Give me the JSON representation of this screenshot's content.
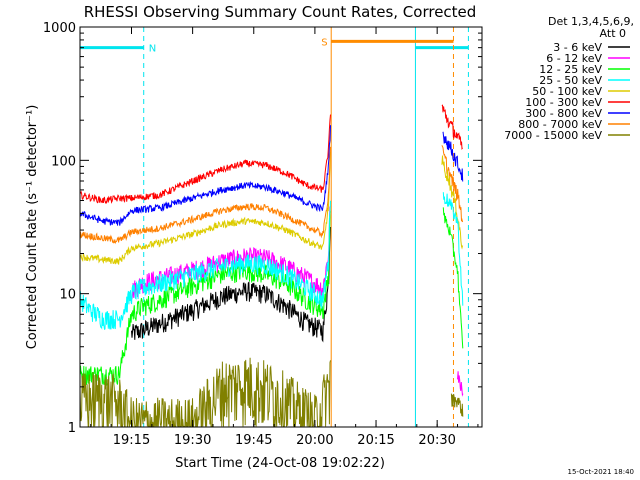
{
  "chart_data": {
    "type": "line",
    "title": "RHESSI Observing Summary Count Rates, Corrected",
    "xlabel": "Start Time (24-Oct-08 19:02:22)",
    "ylabel": "Corrected Count Rate (s⁻¹ detector⁻¹)",
    "yscale": "log",
    "ylim": [
      1,
      1000
    ],
    "xlim": [
      "19:02:22",
      "20:41:00"
    ],
    "x_ticks": [
      "19:15",
      "19:30",
      "19:45",
      "20:00",
      "20:15",
      "20:30"
    ],
    "y_ticks": [
      "1",
      "10",
      "100",
      "1000"
    ],
    "grid": false,
    "legend": {
      "position": "top-right",
      "header": [
        "Det 1,3,4,5,6,9,",
        "Att 0"
      ]
    },
    "footer": "15-Oct-2021 18:40",
    "flags": [
      {
        "label": "N",
        "kind": "night",
        "color": "#00e5ee",
        "start": "19:02:22",
        "end": "19:18:00",
        "level": 700
      },
      {
        "label": "",
        "kind": "night",
        "color": "#00e5ee",
        "start": "20:24:40",
        "end": "20:37:40",
        "level": 700
      },
      {
        "label": "S",
        "kind": "saa",
        "color": "#ff8c00",
        "start": "20:04:00",
        "end": "20:34:00",
        "level": 780
      }
    ],
    "series": [
      {
        "name": "3 - 6 keV",
        "color": "#000000",
        "points": [
          [
            "19:15:00",
            5
          ],
          [
            "19:17:30",
            5.3
          ],
          [
            "19:22:00",
            6
          ],
          [
            "19:30:00",
            7.5
          ],
          [
            "19:37:00",
            9.5
          ],
          [
            "19:43:00",
            10.5
          ],
          [
            "19:48:00",
            10
          ],
          [
            "19:53:00",
            8
          ],
          [
            "19:58:00",
            6
          ],
          [
            "20:02:00",
            5.3
          ],
          [
            "20:03:20",
            12
          ],
          [
            "20:03:50",
            40
          ]
        ]
      },
      {
        "name": "6 - 12 keV",
        "color": "#ff00ff",
        "points": [
          [
            "19:15:00",
            10.5
          ],
          [
            "19:17:30",
            12
          ],
          [
            "19:22:00",
            13
          ],
          [
            "19:30:00",
            15
          ],
          [
            "19:37:00",
            17.5
          ],
          [
            "19:43:00",
            19
          ],
          [
            "19:48:00",
            18.5
          ],
          [
            "19:53:00",
            16
          ],
          [
            "19:58:00",
            13
          ],
          [
            "20:02:00",
            11
          ],
          [
            "20:03:20",
            20
          ],
          [
            "20:03:50",
            55
          ]
        ]
      },
      {
        "name": "12 - 25 keV",
        "color": "#00ff00",
        "points": [
          [
            "19:02:22",
            2.5
          ],
          [
            "19:08:00",
            2.5
          ],
          [
            "19:12:00",
            2.5
          ],
          [
            "19:15:00",
            7
          ],
          [
            "19:17:30",
            8
          ],
          [
            "19:22:00",
            9
          ],
          [
            "19:30:00",
            11.5
          ],
          [
            "19:37:00",
            14
          ],
          [
            "19:43:00",
            15
          ],
          [
            "19:48:00",
            14
          ],
          [
            "19:53:00",
            12
          ],
          [
            "19:58:00",
            9
          ],
          [
            "20:02:00",
            7.5
          ],
          [
            "20:03:20",
            14
          ],
          [
            "20:03:50",
            50
          ]
        ]
      },
      {
        "name": "25 - 50 keV",
        "color": "#00ffff",
        "points": [
          [
            "19:02:22",
            9
          ],
          [
            "19:05:00",
            7.5
          ],
          [
            "19:08:00",
            6.5
          ],
          [
            "19:12:00",
            6.5
          ],
          [
            "19:15:00",
            10
          ],
          [
            "19:17:30",
            11
          ],
          [
            "19:22:00",
            12
          ],
          [
            "19:30:00",
            14
          ],
          [
            "19:37:00",
            16
          ],
          [
            "19:43:00",
            17
          ],
          [
            "19:48:00",
            16.5
          ],
          [
            "19:53:00",
            14
          ],
          [
            "19:58:00",
            11
          ],
          [
            "20:02:00",
            9
          ],
          [
            "20:03:20",
            18
          ],
          [
            "20:03:50",
            60
          ]
        ]
      },
      {
        "name": "50 - 100 keV",
        "color": "#ddcc00",
        "points": [
          [
            "19:02:22",
            19
          ],
          [
            "19:08:00",
            18
          ],
          [
            "19:12:00",
            17.5
          ],
          [
            "19:15:00",
            22
          ],
          [
            "19:22:00",
            24
          ],
          [
            "19:30:00",
            28
          ],
          [
            "19:37:00",
            33
          ],
          [
            "19:43:00",
            35
          ],
          [
            "19:48:00",
            34
          ],
          [
            "19:53:00",
            30
          ],
          [
            "19:58:00",
            25
          ],
          [
            "20:02:00",
            22
          ],
          [
            "20:03:20",
            45
          ],
          [
            "20:03:50",
            110
          ]
        ]
      },
      {
        "name": "100 - 300 keV",
        "color": "#ff0000",
        "points": [
          [
            "19:02:22",
            55
          ],
          [
            "19:08:00",
            50
          ],
          [
            "19:12:00",
            52
          ],
          [
            "19:15:00",
            52
          ],
          [
            "19:22:00",
            55
          ],
          [
            "19:30:00",
            70
          ],
          [
            "19:37:00",
            85
          ],
          [
            "19:43:00",
            95
          ],
          [
            "19:48:00",
            92
          ],
          [
            "19:53:00",
            80
          ],
          [
            "19:58:00",
            65
          ],
          [
            "20:02:00",
            60
          ],
          [
            "20:03:20",
            120
          ],
          [
            "20:03:50",
            230
          ]
        ]
      },
      {
        "name": "300 - 800 keV",
        "color": "#0000ff",
        "points": [
          [
            "19:02:22",
            40
          ],
          [
            "19:08:00",
            35
          ],
          [
            "19:12:00",
            34
          ],
          [
            "19:15:00",
            42
          ],
          [
            "19:22:00",
            44
          ],
          [
            "19:30:00",
            52
          ],
          [
            "19:37:00",
            60
          ],
          [
            "19:43:00",
            65
          ],
          [
            "19:48:00",
            63
          ],
          [
            "19:53:00",
            56
          ],
          [
            "19:58:00",
            48
          ],
          [
            "20:02:00",
            43
          ],
          [
            "20:03:20",
            90
          ],
          [
            "20:03:50",
            180
          ]
        ]
      },
      {
        "name": "800 - 7000 keV",
        "color": "#ff8000",
        "points": [
          [
            "19:02:22",
            28
          ],
          [
            "19:08:00",
            26
          ],
          [
            "19:12:00",
            25
          ],
          [
            "19:15:00",
            29
          ],
          [
            "19:22:00",
            31
          ],
          [
            "19:30:00",
            36
          ],
          [
            "19:37:00",
            42
          ],
          [
            "19:43:00",
            45
          ],
          [
            "19:48:00",
            44
          ],
          [
            "19:53:00",
            38
          ],
          [
            "19:58:00",
            32
          ],
          [
            "20:02:00",
            28
          ],
          [
            "20:03:20",
            55
          ],
          [
            "20:03:50",
            130
          ]
        ]
      },
      {
        "name": "7000 - 15000 keV",
        "color": "#808000",
        "points": [
          [
            "19:02:22",
            1.6
          ],
          [
            "19:08:00",
            1.7
          ],
          [
            "19:12:00",
            1.5
          ],
          [
            "19:15:00",
            1.05
          ],
          [
            "19:30:00",
            1.05
          ],
          [
            "19:37:00",
            2
          ],
          [
            "19:43:00",
            2.2
          ],
          [
            "19:48:00",
            2
          ],
          [
            "19:53:00",
            1.6
          ],
          [
            "20:00:00",
            1.1
          ],
          [
            "20:03:30",
            2
          ],
          [
            "20:03:50",
            3
          ]
        ]
      }
    ],
    "post_segments": [
      {
        "series": "100 - 300 keV",
        "points": [
          [
            "20:31:10",
            250
          ],
          [
            "20:33:00",
            190
          ],
          [
            "20:35:00",
            150
          ],
          [
            "20:36:20",
            120
          ]
        ]
      },
      {
        "series": "300 - 800 keV",
        "points": [
          [
            "20:31:20",
            160
          ],
          [
            "20:33:00",
            130
          ],
          [
            "20:35:00",
            95
          ],
          [
            "20:36:20",
            75
          ]
        ]
      },
      {
        "series": "800 - 7000 keV",
        "points": [
          [
            "20:31:10",
            120
          ],
          [
            "20:33:00",
            80
          ],
          [
            "20:35:00",
            55
          ],
          [
            "20:36:20",
            35
          ]
        ]
      },
      {
        "series": "50 - 100 keV",
        "points": [
          [
            "20:31:10",
            100
          ],
          [
            "20:33:00",
            70
          ],
          [
            "20:35:00",
            40
          ],
          [
            "20:36:20",
            20
          ]
        ]
      },
      {
        "series": "25 - 50 keV",
        "points": [
          [
            "20:31:30",
            55
          ],
          [
            "20:33:00",
            48
          ],
          [
            "20:35:00",
            35
          ],
          [
            "20:36:20",
            8
          ]
        ]
      },
      {
        "series": "12 - 25 keV",
        "points": [
          [
            "20:31:30",
            40
          ],
          [
            "20:33:00",
            30
          ],
          [
            "20:35:00",
            15
          ],
          [
            "20:36:20",
            3.5
          ]
        ]
      },
      {
        "series": "6 - 12 keV",
        "points": [
          [
            "20:35:00",
            2.5
          ],
          [
            "20:36:20",
            1.8
          ]
        ]
      },
      {
        "series": "7000 - 15000 keV",
        "points": [
          [
            "20:33:30",
            1.6
          ],
          [
            "20:35:00",
            1.6
          ],
          [
            "20:36:20",
            1.3
          ]
        ]
      }
    ]
  }
}
